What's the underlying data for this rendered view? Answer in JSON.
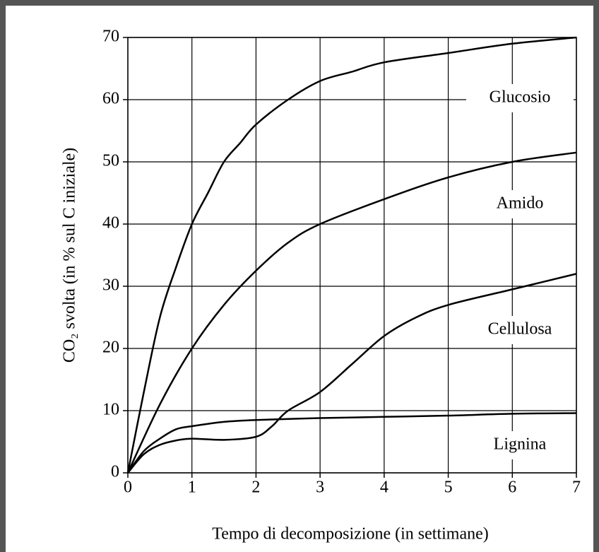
{
  "chart_data": {
    "type": "line",
    "xlabel": "Tempo di decomposizione (in settimane)",
    "ylabel": "CO₂ svolta (in % sul C iniziale)",
    "xlim": [
      0,
      7
    ],
    "xticks": [
      0,
      1,
      2,
      3,
      4,
      5,
      6,
      7
    ],
    "ylim": [
      0,
      70
    ],
    "yticks": [
      0,
      10,
      20,
      30,
      40,
      50,
      60,
      70
    ],
    "grid": true,
    "series": [
      {
        "name": "Glucosio",
        "color": "#000000",
        "x": [
          0,
          0.25,
          0.5,
          0.75,
          1,
          1.25,
          1.5,
          1.75,
          2,
          2.5,
          3,
          3.5,
          4,
          5,
          6,
          7
        ],
        "values": [
          0,
          13,
          25,
          33,
          40,
          45,
          50,
          53,
          56,
          60,
          63,
          64.5,
          66,
          67.5,
          69,
          70
        ]
      },
      {
        "name": "Amido",
        "color": "#000000",
        "x": [
          0,
          0.5,
          1,
          1.5,
          2,
          2.5,
          3,
          4,
          5,
          6,
          7
        ],
        "values": [
          0,
          11,
          20,
          27,
          32.5,
          37,
          40,
          44,
          47.5,
          50,
          51.5
        ]
      },
      {
        "name": "Cellulosa",
        "color": "#000000",
        "x": [
          0,
          0.25,
          0.5,
          0.75,
          1,
          1.5,
          2,
          2.25,
          2.5,
          3,
          3.5,
          4,
          4.5,
          5,
          6,
          7
        ],
        "values": [
          0,
          3,
          4.5,
          5.2,
          5.5,
          5.3,
          5.8,
          7.5,
          10,
          13,
          17.5,
          22,
          25,
          27,
          29.5,
          32
        ]
      },
      {
        "name": "Lignina",
        "color": "#000000",
        "x": [
          0,
          0.25,
          0.5,
          0.75,
          1,
          1.5,
          2,
          3,
          4,
          5,
          6,
          7
        ],
        "values": [
          0,
          3.5,
          5.5,
          7,
          7.5,
          8.2,
          8.5,
          8.8,
          9,
          9.2,
          9.5,
          9.6
        ]
      }
    ]
  }
}
